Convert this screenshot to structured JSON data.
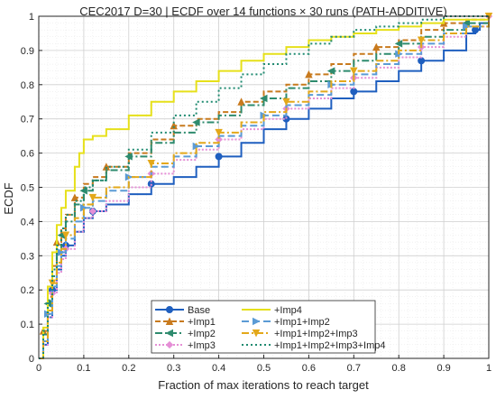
{
  "chart_data": {
    "type": "line",
    "title": "CEC2017 D=30 | ECDF over 14 functions × 30 runs (PATH-ADDITIVE)",
    "xlabel": "Fraction of max iterations to reach target",
    "ylabel": "ECDF",
    "xlim": [
      0,
      1
    ],
    "ylim": [
      0,
      1
    ],
    "xticks": [
      "0",
      "0.1",
      "0.2",
      "0.3",
      "0.4",
      "0.5",
      "0.6",
      "0.7",
      "0.8",
      "0.9",
      "1"
    ],
    "yticks": [
      "0",
      "0.1",
      "0.2",
      "0.3",
      "0.4",
      "0.5",
      "0.6",
      "0.7",
      "0.8",
      "0.9",
      "1"
    ],
    "grid": true,
    "legend_position": "bottom-center",
    "legend_columns": 2,
    "series": [
      {
        "name": "Base",
        "color": "#1f5fbf",
        "dash": "solid",
        "marker": "circle",
        "points": [
          [
            0.0,
            0.0
          ],
          [
            0.01,
            0.04
          ],
          [
            0.02,
            0.12
          ],
          [
            0.03,
            0.2
          ],
          [
            0.04,
            0.26
          ],
          [
            0.05,
            0.3
          ],
          [
            0.06,
            0.33
          ],
          [
            0.08,
            0.37
          ],
          [
            0.1,
            0.41
          ],
          [
            0.12,
            0.43
          ],
          [
            0.15,
            0.45
          ],
          [
            0.2,
            0.48
          ],
          [
            0.25,
            0.51
          ],
          [
            0.3,
            0.53
          ],
          [
            0.35,
            0.56
          ],
          [
            0.4,
            0.59
          ],
          [
            0.45,
            0.63
          ],
          [
            0.5,
            0.67
          ],
          [
            0.55,
            0.7
          ],
          [
            0.6,
            0.73
          ],
          [
            0.65,
            0.76
          ],
          [
            0.7,
            0.78
          ],
          [
            0.75,
            0.81
          ],
          [
            0.8,
            0.84
          ],
          [
            0.85,
            0.87
          ],
          [
            0.9,
            0.9
          ],
          [
            0.95,
            0.95
          ],
          [
            0.97,
            0.96
          ],
          [
            0.98,
            0.98
          ],
          [
            1.0,
            1.0
          ]
        ]
      },
      {
        "name": "+Imp1",
        "color": "#c87a1e",
        "dash": "6,3",
        "marker": "triangle",
        "points": [
          [
            0.0,
            0.0
          ],
          [
            0.01,
            0.08
          ],
          [
            0.02,
            0.18
          ],
          [
            0.03,
            0.27
          ],
          [
            0.04,
            0.34
          ],
          [
            0.05,
            0.38
          ],
          [
            0.06,
            0.42
          ],
          [
            0.08,
            0.47
          ],
          [
            0.1,
            0.51
          ],
          [
            0.12,
            0.53
          ],
          [
            0.15,
            0.56
          ],
          [
            0.2,
            0.6
          ],
          [
            0.25,
            0.64
          ],
          [
            0.3,
            0.68
          ],
          [
            0.35,
            0.7
          ],
          [
            0.4,
            0.72
          ],
          [
            0.45,
            0.75
          ],
          [
            0.5,
            0.78
          ],
          [
            0.55,
            0.8
          ],
          [
            0.6,
            0.83
          ],
          [
            0.65,
            0.86
          ],
          [
            0.7,
            0.89
          ],
          [
            0.75,
            0.91
          ],
          [
            0.8,
            0.93
          ],
          [
            0.85,
            0.96
          ],
          [
            0.9,
            0.98
          ],
          [
            0.95,
            0.99
          ],
          [
            1.0,
            1.0
          ]
        ]
      },
      {
        "name": "+Imp2",
        "color": "#2e8b6e",
        "dash": "8,3,2,3",
        "marker": "triangle-left",
        "points": [
          [
            0.0,
            0.0
          ],
          [
            0.01,
            0.07
          ],
          [
            0.02,
            0.16
          ],
          [
            0.03,
            0.24
          ],
          [
            0.04,
            0.31
          ],
          [
            0.05,
            0.36
          ],
          [
            0.06,
            0.4
          ],
          [
            0.08,
            0.45
          ],
          [
            0.1,
            0.49
          ],
          [
            0.12,
            0.52
          ],
          [
            0.15,
            0.55
          ],
          [
            0.2,
            0.59
          ],
          [
            0.25,
            0.63
          ],
          [
            0.3,
            0.66
          ],
          [
            0.35,
            0.69
          ],
          [
            0.4,
            0.71
          ],
          [
            0.45,
            0.74
          ],
          [
            0.5,
            0.76
          ],
          [
            0.55,
            0.79
          ],
          [
            0.6,
            0.81
          ],
          [
            0.65,
            0.84
          ],
          [
            0.7,
            0.87
          ],
          [
            0.75,
            0.89
          ],
          [
            0.8,
            0.92
          ],
          [
            0.85,
            0.94
          ],
          [
            0.9,
            0.96
          ],
          [
            0.95,
            0.98
          ],
          [
            1.0,
            1.0
          ]
        ]
      },
      {
        "name": "+Imp3",
        "color": "#e58fd6",
        "dash": "2,2",
        "marker": "diamond",
        "points": [
          [
            0.0,
            0.0
          ],
          [
            0.01,
            0.04
          ],
          [
            0.02,
            0.12
          ],
          [
            0.03,
            0.19
          ],
          [
            0.04,
            0.25
          ],
          [
            0.05,
            0.29
          ],
          [
            0.06,
            0.32
          ],
          [
            0.08,
            0.37
          ],
          [
            0.1,
            0.41
          ],
          [
            0.12,
            0.43
          ],
          [
            0.15,
            0.46
          ],
          [
            0.2,
            0.5
          ],
          [
            0.25,
            0.54
          ],
          [
            0.3,
            0.58
          ],
          [
            0.35,
            0.61
          ],
          [
            0.4,
            0.64
          ],
          [
            0.45,
            0.67
          ],
          [
            0.5,
            0.7
          ],
          [
            0.55,
            0.73
          ],
          [
            0.6,
            0.76
          ],
          [
            0.65,
            0.79
          ],
          [
            0.7,
            0.82
          ],
          [
            0.75,
            0.85
          ],
          [
            0.8,
            0.88
          ],
          [
            0.85,
            0.91
          ],
          [
            0.9,
            0.94
          ],
          [
            0.95,
            0.97
          ],
          [
            1.0,
            1.0
          ]
        ]
      },
      {
        "name": "+Imp4",
        "color": "#e6e01a",
        "dash": "solid",
        "marker": "none",
        "points": [
          [
            0.0,
            0.0
          ],
          [
            0.01,
            0.09
          ],
          [
            0.02,
            0.21
          ],
          [
            0.03,
            0.31
          ],
          [
            0.04,
            0.39
          ],
          [
            0.05,
            0.44
          ],
          [
            0.06,
            0.49
          ],
          [
            0.08,
            0.56
          ],
          [
            0.09,
            0.6
          ],
          [
            0.1,
            0.64
          ],
          [
            0.12,
            0.65
          ],
          [
            0.15,
            0.67
          ],
          [
            0.2,
            0.71
          ],
          [
            0.25,
            0.75
          ],
          [
            0.3,
            0.78
          ],
          [
            0.35,
            0.81
          ],
          [
            0.4,
            0.84
          ],
          [
            0.45,
            0.87
          ],
          [
            0.5,
            0.89
          ],
          [
            0.55,
            0.91
          ],
          [
            0.6,
            0.93
          ],
          [
            0.65,
            0.94
          ],
          [
            0.7,
            0.95
          ],
          [
            0.75,
            0.96
          ],
          [
            0.8,
            0.97
          ],
          [
            0.85,
            0.98
          ],
          [
            0.9,
            0.99
          ],
          [
            1.0,
            1.0
          ]
        ]
      },
      {
        "name": "+Imp1+Imp2",
        "color": "#5b9bd5",
        "dash": "8,4",
        "marker": "triangle-right",
        "points": [
          [
            0.0,
            0.0
          ],
          [
            0.01,
            0.05
          ],
          [
            0.02,
            0.13
          ],
          [
            0.03,
            0.21
          ],
          [
            0.04,
            0.27
          ],
          [
            0.05,
            0.31
          ],
          [
            0.06,
            0.35
          ],
          [
            0.08,
            0.4
          ],
          [
            0.1,
            0.44
          ],
          [
            0.12,
            0.46
          ],
          [
            0.15,
            0.49
          ],
          [
            0.2,
            0.53
          ],
          [
            0.25,
            0.56
          ],
          [
            0.3,
            0.59
          ],
          [
            0.35,
            0.62
          ],
          [
            0.4,
            0.65
          ],
          [
            0.45,
            0.68
          ],
          [
            0.5,
            0.71
          ],
          [
            0.55,
            0.74
          ],
          [
            0.6,
            0.77
          ],
          [
            0.65,
            0.8
          ],
          [
            0.7,
            0.83
          ],
          [
            0.75,
            0.86
          ],
          [
            0.8,
            0.89
          ],
          [
            0.85,
            0.92
          ],
          [
            0.9,
            0.95
          ],
          [
            0.95,
            0.97
          ],
          [
            1.0,
            1.0
          ]
        ]
      },
      {
        "name": "+Imp1+Imp2+Imp3",
        "color": "#e3a81a",
        "dash": "8,3,2,3",
        "marker": "triangle-down",
        "points": [
          [
            0.0,
            0.0
          ],
          [
            0.01,
            0.05
          ],
          [
            0.02,
            0.14
          ],
          [
            0.03,
            0.22
          ],
          [
            0.04,
            0.28
          ],
          [
            0.05,
            0.32
          ],
          [
            0.06,
            0.36
          ],
          [
            0.08,
            0.41
          ],
          [
            0.1,
            0.45
          ],
          [
            0.12,
            0.47
          ],
          [
            0.15,
            0.5
          ],
          [
            0.2,
            0.53
          ],
          [
            0.25,
            0.57
          ],
          [
            0.3,
            0.6
          ],
          [
            0.35,
            0.63
          ],
          [
            0.4,
            0.66
          ],
          [
            0.45,
            0.69
          ],
          [
            0.5,
            0.72
          ],
          [
            0.55,
            0.75
          ],
          [
            0.6,
            0.78
          ],
          [
            0.65,
            0.81
          ],
          [
            0.7,
            0.84
          ],
          [
            0.75,
            0.87
          ],
          [
            0.8,
            0.9
          ],
          [
            0.85,
            0.93
          ],
          [
            0.9,
            0.95
          ],
          [
            0.95,
            0.97
          ],
          [
            1.0,
            1.0
          ]
        ]
      },
      {
        "name": "+Imp1+Imp2+Imp3+Imp4",
        "color": "#1f8a70",
        "dash": "2,3",
        "marker": "none",
        "points": [
          [
            0.0,
            0.0
          ],
          [
            0.01,
            0.08
          ],
          [
            0.02,
            0.17
          ],
          [
            0.03,
            0.26
          ],
          [
            0.04,
            0.33
          ],
          [
            0.05,
            0.38
          ],
          [
            0.06,
            0.42
          ],
          [
            0.08,
            0.46
          ],
          [
            0.1,
            0.5
          ],
          [
            0.12,
            0.52
          ],
          [
            0.15,
            0.56
          ],
          [
            0.2,
            0.61
          ],
          [
            0.25,
            0.66
          ],
          [
            0.3,
            0.71
          ],
          [
            0.35,
            0.75
          ],
          [
            0.4,
            0.79
          ],
          [
            0.45,
            0.83
          ],
          [
            0.5,
            0.86
          ],
          [
            0.55,
            0.89
          ],
          [
            0.6,
            0.92
          ],
          [
            0.65,
            0.94
          ],
          [
            0.7,
            0.96
          ],
          [
            0.75,
            0.97
          ],
          [
            0.8,
            0.98
          ],
          [
            0.85,
            0.99
          ],
          [
            0.9,
            1.0
          ],
          [
            1.0,
            1.0
          ]
        ]
      }
    ]
  }
}
